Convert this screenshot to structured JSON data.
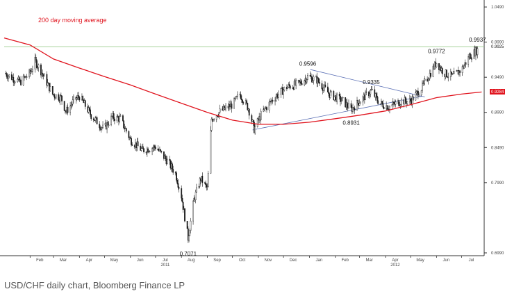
{
  "chart_data": {
    "type": "candlestick",
    "title": "",
    "series": [
      {
        "name": "200 day moving average",
        "color": "#e0141e"
      }
    ],
    "annotations": [
      {
        "text": "0.7071",
        "x": "2011-08-09",
        "y": 0.7071,
        "kind": "low"
      },
      {
        "text": "0.9596",
        "x": "2011-12-30",
        "y": 0.9596,
        "kind": "high"
      },
      {
        "text": "0.9335",
        "x": "2012-03-15",
        "y": 0.9335,
        "kind": "high"
      },
      {
        "text": "0.8931",
        "x": "2012-02-20",
        "y": 0.8931,
        "kind": "low"
      },
      {
        "text": "0.9772",
        "x": "2012-06-01",
        "y": 0.9772,
        "kind": "high"
      },
      {
        "text": "0.9937",
        "x": "2012-07-20",
        "y": 0.9937,
        "kind": "high"
      }
    ],
    "trendlines": [
      {
        "from": {
          "x": "2011-10-25",
          "y": 0.874
        },
        "to": {
          "x": "2012-05-15",
          "y": 0.922
        }
      },
      {
        "from": {
          "x": "2012-01-02",
          "y": 0.96
        },
        "to": {
          "x": "2012-05-18",
          "y": 0.921
        }
      }
    ],
    "horizontal_line": {
      "y": 0.9925
    },
    "last_price": {
      "value": "0.9925",
      "y": 0.9925
    },
    "ma_last": {
      "value": "0.9284",
      "y": 0.9284
    },
    "y_ticks": [
      "0.6990",
      "0.7990",
      "0.8490",
      "0.8990",
      "0.9490",
      "0.9990",
      "1.0490"
    ],
    "y_values": [
      0.699,
      0.799,
      0.849,
      0.899,
      0.949,
      0.999,
      1.049
    ],
    "x_ticks": [
      "Feb",
      "Mar",
      "Apr",
      "May",
      "Jun",
      "Jul",
      "Aug",
      "Sep",
      "Oct",
      "Nov",
      "Dec",
      "Jan",
      "Feb",
      "Mar",
      "Apr",
      "May",
      "Jun",
      "Jul"
    ],
    "year_labels": [
      {
        "text": "2011",
        "under": 5
      },
      {
        "text": "2012",
        "under": 14
      }
    ],
    "ylim": [
      0.695,
      1.055
    ],
    "price_path": [
      [
        "2011-01-01",
        0.955
      ],
      [
        "2011-01-20",
        0.942
      ],
      [
        "2011-02-01",
        0.955
      ],
      [
        "2011-02-07",
        0.972
      ],
      [
        "2011-02-14",
        0.958
      ],
      [
        "2011-02-28",
        0.925
      ],
      [
        "2011-03-10",
        0.92
      ],
      [
        "2011-03-16",
        0.9
      ],
      [
        "2011-03-25",
        0.915
      ],
      [
        "2011-04-01",
        0.922
      ],
      [
        "2011-04-15",
        0.895
      ],
      [
        "2011-04-30",
        0.875
      ],
      [
        "2011-05-10",
        0.892
      ],
      [
        "2011-05-20",
        0.89
      ],
      [
        "2011-06-01",
        0.86
      ],
      [
        "2011-06-15",
        0.845
      ],
      [
        "2011-07-01",
        0.85
      ],
      [
        "2011-07-15",
        0.83
      ],
      [
        "2011-07-25",
        0.812
      ],
      [
        "2011-08-01",
        0.78
      ],
      [
        "2011-08-09",
        0.72
      ],
      [
        "2011-08-16",
        0.775
      ],
      [
        "2011-08-24",
        0.805
      ],
      [
        "2011-09-01",
        0.79
      ],
      [
        "2011-09-06",
        0.89
      ],
      [
        "2011-09-16",
        0.9
      ],
      [
        "2011-10-01",
        0.91
      ],
      [
        "2011-10-10",
        0.925
      ],
      [
        "2011-10-20",
        0.905
      ],
      [
        "2011-10-27",
        0.875
      ],
      [
        "2011-11-05",
        0.898
      ],
      [
        "2011-11-20",
        0.92
      ],
      [
        "2011-12-05",
        0.935
      ],
      [
        "2011-12-20",
        0.94
      ],
      [
        "2011-12-30",
        0.95
      ],
      [
        "2012-01-10",
        0.945
      ],
      [
        "2012-01-25",
        0.925
      ],
      [
        "2012-02-10",
        0.915
      ],
      [
        "2012-02-20",
        0.903
      ],
      [
        "2012-03-01",
        0.915
      ],
      [
        "2012-03-15",
        0.93
      ],
      [
        "2012-03-25",
        0.912
      ],
      [
        "2012-04-05",
        0.907
      ],
      [
        "2012-04-20",
        0.915
      ],
      [
        "2012-05-01",
        0.915
      ],
      [
        "2012-05-15",
        0.935
      ],
      [
        "2012-06-01",
        0.97
      ],
      [
        "2012-06-10",
        0.955
      ],
      [
        "2012-06-20",
        0.95
      ],
      [
        "2012-07-01",
        0.96
      ],
      [
        "2012-07-10",
        0.978
      ],
      [
        "2012-07-20",
        0.988
      ]
    ],
    "ma_path": [
      [
        "2011-01-01",
        1.005
      ],
      [
        "2011-02-01",
        0.995
      ],
      [
        "2011-03-01",
        0.975
      ],
      [
        "2011-04-01",
        0.962
      ],
      [
        "2011-05-01",
        0.95
      ],
      [
        "2011-06-01",
        0.938
      ],
      [
        "2011-07-01",
        0.925
      ],
      [
        "2011-08-01",
        0.912
      ],
      [
        "2011-09-01",
        0.899
      ],
      [
        "2011-10-01",
        0.888
      ],
      [
        "2011-11-01",
        0.882
      ],
      [
        "2011-12-01",
        0.882
      ],
      [
        "2012-01-01",
        0.885
      ],
      [
        "2012-02-01",
        0.89
      ],
      [
        "2012-03-01",
        0.895
      ],
      [
        "2012-04-01",
        0.901
      ],
      [
        "2012-05-01",
        0.91
      ],
      [
        "2012-06-01",
        0.92
      ],
      [
        "2012-07-01",
        0.925
      ],
      [
        "2012-07-25",
        0.928
      ]
    ],
    "colors": {
      "candle": "#1a1a1a",
      "ma": "#e0141e",
      "trend": "#5a6fb5",
      "hline": "#9ccc8c",
      "grid": "#cccccc"
    },
    "grid": false
  },
  "caption": "USD/CHF daily chart, Bloomberg Finance LP"
}
